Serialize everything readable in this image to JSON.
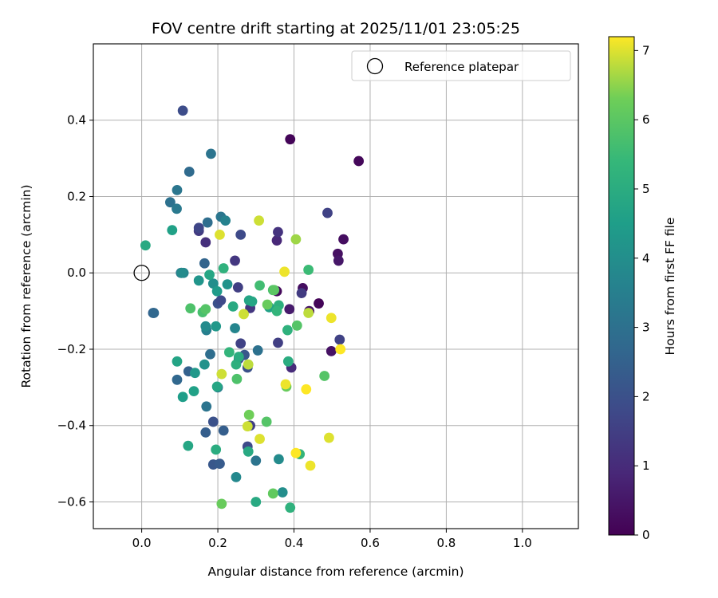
{
  "chart_data": {
    "type": "scatter",
    "title": "FOV centre drift starting at 2025/11/01 23:05:25",
    "xlabel": "Angular distance from reference (arcmin)",
    "ylabel": "Rotation from reference (arcmin)",
    "xlim": [
      -0.127,
      1.147
    ],
    "ylim": [
      -0.67,
      0.6
    ],
    "xticks": [
      0.0,
      0.2,
      0.4,
      0.6,
      0.8,
      1.0
    ],
    "xtick_labels": [
      "0.0",
      "0.2",
      "0.4",
      "0.6",
      "0.8",
      "1.0"
    ],
    "yticks": [
      -0.6,
      -0.4,
      -0.2,
      0.0,
      0.2,
      0.4
    ],
    "ytick_labels": [
      "−0.6",
      "−0.4",
      "−0.2",
      "0.0",
      "0.2",
      "0.4"
    ],
    "grid": true,
    "colormap": "viridis",
    "colorbar": {
      "label": "Hours from first FF file",
      "range": [
        0,
        7.2
      ],
      "ticks": [
        0,
        1,
        2,
        3,
        4,
        5,
        6,
        7
      ],
      "tick_labels": [
        "0",
        "1",
        "2",
        "3",
        "4",
        "5",
        "6",
        "7"
      ]
    },
    "legend": {
      "location": "top-right",
      "entries": [
        "Reference platepar"
      ]
    },
    "reference": {
      "x": 0.0,
      "y": 0.0,
      "label": "Reference platepar"
    },
    "points": [
      {
        "x": 0.39,
        "y": 0.35,
        "c": 0.1
      },
      {
        "x": 0.57,
        "y": 0.293,
        "c": 0.15
      },
      {
        "x": 0.53,
        "y": 0.088,
        "c": 0.3
      },
      {
        "x": 0.515,
        "y": 0.05,
        "c": 0.35
      },
      {
        "x": 0.517,
        "y": 0.032,
        "c": 0.5
      },
      {
        "x": 0.355,
        "y": -0.048,
        "c": 0.2
      },
      {
        "x": 0.423,
        "y": -0.04,
        "c": 0.3
      },
      {
        "x": 0.465,
        "y": -0.08,
        "c": 0.1
      },
      {
        "x": 0.44,
        "y": -0.1,
        "c": 0.4
      },
      {
        "x": 0.388,
        "y": -0.095,
        "c": 0.6
      },
      {
        "x": 0.498,
        "y": -0.205,
        "c": 0.4
      },
      {
        "x": 0.52,
        "y": -0.175,
        "c": 1.6
      },
      {
        "x": 0.393,
        "y": -0.248,
        "c": 1.0
      },
      {
        "x": 0.355,
        "y": 0.085,
        "c": 0.9
      },
      {
        "x": 0.358,
        "y": 0.107,
        "c": 1.2
      },
      {
        "x": 0.42,
        "y": -0.053,
        "c": 1.4
      },
      {
        "x": 0.488,
        "y": 0.157,
        "c": 1.6
      },
      {
        "x": 0.285,
        "y": -0.092,
        "c": 1.3
      },
      {
        "x": 0.358,
        "y": -0.183,
        "c": 1.5
      },
      {
        "x": 0.108,
        "y": 0.425,
        "c": 1.9
      },
      {
        "x": 0.15,
        "y": 0.11,
        "c": 1.4
      },
      {
        "x": 0.15,
        "y": 0.118,
        "c": 1.7
      },
      {
        "x": 0.168,
        "y": 0.08,
        "c": 1.1
      },
      {
        "x": 0.245,
        "y": 0.032,
        "c": 1.3
      },
      {
        "x": 0.26,
        "y": 0.1,
        "c": 1.8
      },
      {
        "x": 0.253,
        "y": -0.038,
        "c": 1.5
      },
      {
        "x": 0.26,
        "y": -0.185,
        "c": 1.6
      },
      {
        "x": 0.255,
        "y": -0.225,
        "c": 1.9
      },
      {
        "x": 0.27,
        "y": -0.215,
        "c": 2.2
      },
      {
        "x": 0.278,
        "y": -0.248,
        "c": 2.0
      },
      {
        "x": 0.285,
        "y": -0.4,
        "c": 1.5
      },
      {
        "x": 0.278,
        "y": -0.455,
        "c": 1.8
      },
      {
        "x": 0.188,
        "y": -0.502,
        "c": 2.2
      },
      {
        "x": 0.205,
        "y": -0.5,
        "c": 2.3
      },
      {
        "x": 0.188,
        "y": -0.39,
        "c": 2.0
      },
      {
        "x": 0.215,
        "y": -0.413,
        "c": 2.4
      },
      {
        "x": 0.168,
        "y": -0.418,
        "c": 2.4
      },
      {
        "x": 0.2,
        "y": -0.08,
        "c": 2.0
      },
      {
        "x": 0.208,
        "y": -0.072,
        "c": 1.8
      },
      {
        "x": 0.03,
        "y": -0.105,
        "c": 2.5
      },
      {
        "x": 0.032,
        "y": -0.105,
        "c": 2.7
      },
      {
        "x": 0.105,
        "y": 0.0,
        "c": 2.9
      },
      {
        "x": 0.103,
        "y": 0.0,
        "c": 3.1
      },
      {
        "x": 0.165,
        "y": 0.025,
        "c": 2.6
      },
      {
        "x": 0.125,
        "y": 0.265,
        "c": 2.8
      },
      {
        "x": 0.182,
        "y": 0.312,
        "c": 3.1
      },
      {
        "x": 0.093,
        "y": 0.217,
        "c": 3.2
      },
      {
        "x": 0.075,
        "y": 0.185,
        "c": 3.0
      },
      {
        "x": 0.092,
        "y": 0.168,
        "c": 3.3
      },
      {
        "x": 0.173,
        "y": 0.132,
        "c": 2.9
      },
      {
        "x": 0.208,
        "y": 0.147,
        "c": 3.2
      },
      {
        "x": 0.22,
        "y": 0.137,
        "c": 3.6
      },
      {
        "x": 0.093,
        "y": -0.28,
        "c": 2.7
      },
      {
        "x": 0.123,
        "y": -0.258,
        "c": 2.5
      },
      {
        "x": 0.18,
        "y": -0.213,
        "c": 2.9
      },
      {
        "x": 0.17,
        "y": -0.15,
        "c": 3.5
      },
      {
        "x": 0.305,
        "y": -0.203,
        "c": 3.0
      },
      {
        "x": 0.17,
        "y": -0.35,
        "c": 3.1
      },
      {
        "x": 0.245,
        "y": -0.145,
        "c": 3.7
      },
      {
        "x": 0.2,
        "y": -0.3,
        "c": 3.4
      },
      {
        "x": 0.3,
        "y": -0.492,
        "c": 3.1
      },
      {
        "x": 0.248,
        "y": -0.535,
        "c": 3.8
      },
      {
        "x": 0.37,
        "y": -0.575,
        "c": 4.0
      },
      {
        "x": 0.36,
        "y": -0.488,
        "c": 3.9
      },
      {
        "x": 0.165,
        "y": -0.24,
        "c": 4.1
      },
      {
        "x": 0.168,
        "y": -0.14,
        "c": 3.9
      },
      {
        "x": 0.195,
        "y": -0.14,
        "c": 4.3
      },
      {
        "x": 0.15,
        "y": -0.02,
        "c": 4.2
      },
      {
        "x": 0.188,
        "y": -0.028,
        "c": 4.0
      },
      {
        "x": 0.225,
        "y": -0.03,
        "c": 4.1
      },
      {
        "x": 0.198,
        "y": -0.048,
        "c": 4.4
      },
      {
        "x": 0.11,
        "y": 0.0,
        "c": 3.7
      },
      {
        "x": 0.105,
        "y": 0.0,
        "c": 3.9
      },
      {
        "x": 0.08,
        "y": 0.112,
        "c": 4.6
      },
      {
        "x": 0.01,
        "y": 0.072,
        "c": 4.9
      },
      {
        "x": 0.178,
        "y": -0.005,
        "c": 4.8
      },
      {
        "x": 0.215,
        "y": 0.012,
        "c": 5.2
      },
      {
        "x": 0.282,
        "y": -0.072,
        "c": 4.7
      },
      {
        "x": 0.24,
        "y": -0.088,
        "c": 4.9
      },
      {
        "x": 0.093,
        "y": -0.232,
        "c": 4.7
      },
      {
        "x": 0.14,
        "y": -0.262,
        "c": 4.3
      },
      {
        "x": 0.137,
        "y": -0.31,
        "c": 4.6
      },
      {
        "x": 0.108,
        "y": -0.325,
        "c": 4.5
      },
      {
        "x": 0.198,
        "y": -0.298,
        "c": 4.8
      },
      {
        "x": 0.122,
        "y": -0.453,
        "c": 4.8
      },
      {
        "x": 0.195,
        "y": -0.463,
        "c": 5.0
      },
      {
        "x": 0.28,
        "y": -0.468,
        "c": 4.9
      },
      {
        "x": 0.248,
        "y": -0.24,
        "c": 5.1
      },
      {
        "x": 0.255,
        "y": -0.22,
        "c": 5.0
      },
      {
        "x": 0.23,
        "y": -0.208,
        "c": 5.3
      },
      {
        "x": 0.29,
        "y": -0.075,
        "c": 4.8
      },
      {
        "x": 0.335,
        "y": -0.09,
        "c": 4.6
      },
      {
        "x": 0.36,
        "y": -0.085,
        "c": 5.1
      },
      {
        "x": 0.355,
        "y": -0.1,
        "c": 5.3
      },
      {
        "x": 0.383,
        "y": -0.15,
        "c": 5.2
      },
      {
        "x": 0.385,
        "y": -0.232,
        "c": 5.0
      },
      {
        "x": 0.3,
        "y": -0.6,
        "c": 4.9
      },
      {
        "x": 0.39,
        "y": -0.615,
        "c": 5.2
      },
      {
        "x": 0.415,
        "y": -0.475,
        "c": 5.3
      },
      {
        "x": 0.438,
        "y": 0.008,
        "c": 5.5
      },
      {
        "x": 0.31,
        "y": -0.033,
        "c": 5.6
      },
      {
        "x": 0.345,
        "y": -0.045,
        "c": 5.7
      },
      {
        "x": 0.16,
        "y": -0.103,
        "c": 5.7
      },
      {
        "x": 0.168,
        "y": -0.095,
        "c": 5.9
      },
      {
        "x": 0.128,
        "y": -0.093,
        "c": 5.8
      },
      {
        "x": 0.408,
        "y": -0.138,
        "c": 5.9
      },
      {
        "x": 0.48,
        "y": -0.27,
        "c": 5.9
      },
      {
        "x": 0.25,
        "y": -0.278,
        "c": 5.8
      },
      {
        "x": 0.328,
        "y": -0.39,
        "c": 5.9
      },
      {
        "x": 0.282,
        "y": -0.372,
        "c": 6.3
      },
      {
        "x": 0.345,
        "y": -0.578,
        "c": 6.1
      },
      {
        "x": 0.21,
        "y": -0.605,
        "c": 6.2
      },
      {
        "x": 0.33,
        "y": -0.083,
        "c": 6.2
      },
      {
        "x": 0.348,
        "y": -0.045,
        "c": 6.0
      },
      {
        "x": 0.38,
        "y": -0.298,
        "c": 6.2
      },
      {
        "x": 0.405,
        "y": 0.088,
        "c": 6.6
      },
      {
        "x": 0.438,
        "y": -0.105,
        "c": 6.8
      },
      {
        "x": 0.268,
        "y": -0.108,
        "c": 6.9
      },
      {
        "x": 0.21,
        "y": -0.265,
        "c": 6.9
      },
      {
        "x": 0.28,
        "y": -0.24,
        "c": 6.8
      },
      {
        "x": 0.278,
        "y": -0.402,
        "c": 6.9
      },
      {
        "x": 0.31,
        "y": -0.435,
        "c": 7.0
      },
      {
        "x": 0.205,
        "y": 0.1,
        "c": 7.0
      },
      {
        "x": 0.308,
        "y": 0.137,
        "c": 6.9
      },
      {
        "x": 0.375,
        "y": 0.003,
        "c": 7.1
      },
      {
        "x": 0.378,
        "y": -0.292,
        "c": 7.1
      },
      {
        "x": 0.432,
        "y": -0.305,
        "c": 7.2
      },
      {
        "x": 0.498,
        "y": -0.118,
        "c": 7.1
      },
      {
        "x": 0.522,
        "y": -0.2,
        "c": 7.2
      },
      {
        "x": 0.492,
        "y": -0.432,
        "c": 7.0
      },
      {
        "x": 0.405,
        "y": -0.472,
        "c": 7.2
      },
      {
        "x": 0.443,
        "y": -0.505,
        "c": 7.1
      }
    ]
  }
}
